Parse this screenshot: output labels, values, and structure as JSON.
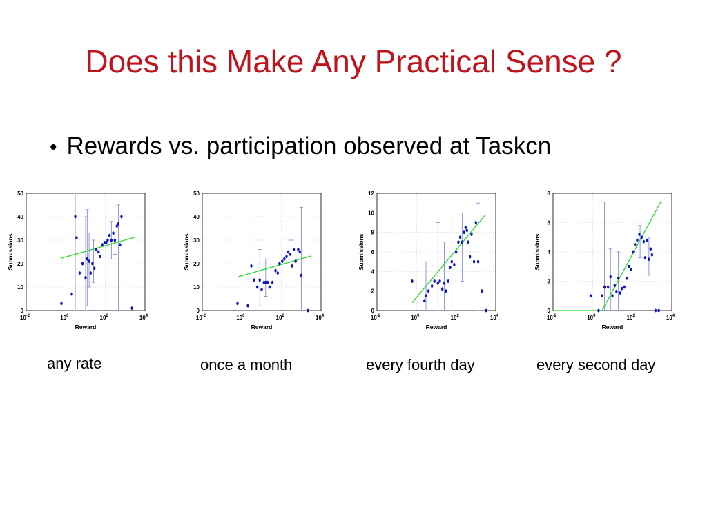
{
  "slide": {
    "title": "Does this Make Any Practical Sense ?",
    "bullet": "Rewards vs. participation observed at Taskcn"
  },
  "colors": {
    "title": "#c0141c",
    "points": "#0a14c8",
    "fit_line": "#22dd22",
    "error_bars": "#6a6ad8"
  },
  "chart_data": [
    {
      "type": "scatter",
      "caption": "any rate",
      "xlabel": "Reward",
      "ylabel": "Submissions",
      "xscale": "log",
      "xlim": [
        0.01,
        10000
      ],
      "ylim": [
        0,
        50
      ],
      "xticks": [
        "10^-2",
        "10^0",
        "10^2",
        "10^4"
      ],
      "yticks": [
        "0",
        "10",
        "20",
        "30",
        "40",
        "50"
      ],
      "grid": true,
      "points": [
        [
          0.6,
          3
        ],
        [
          2,
          7
        ],
        [
          3,
          40
        ],
        [
          3.5,
          31
        ],
        [
          5,
          16
        ],
        [
          7,
          20
        ],
        [
          10,
          14
        ],
        [
          12,
          22
        ],
        [
          15,
          21
        ],
        [
          18,
          16
        ],
        [
          22,
          20
        ],
        [
          28,
          18
        ],
        [
          35,
          26
        ],
        [
          45,
          25
        ],
        [
          55,
          23
        ],
        [
          70,
          28
        ],
        [
          90,
          29
        ],
        [
          110,
          29
        ],
        [
          130,
          30
        ],
        [
          160,
          32
        ],
        [
          200,
          30
        ],
        [
          250,
          33
        ],
        [
          300,
          30
        ],
        [
          380,
          36
        ],
        [
          450,
          37
        ],
        [
          550,
          28
        ],
        [
          650,
          40
        ],
        [
          2200,
          1
        ]
      ],
      "error_bars": [
        [
          3,
          0,
          50
        ],
        [
          10,
          0,
          40
        ],
        [
          12,
          2,
          43
        ],
        [
          15,
          10,
          33
        ],
        [
          25,
          12,
          30
        ],
        [
          200,
          22,
          38
        ],
        [
          300,
          24,
          36
        ],
        [
          450,
          0,
          45
        ]
      ],
      "fit_line": {
        "x": [
          0.6,
          3000
        ],
        "y": [
          22.3,
          31.2
        ]
      }
    },
    {
      "type": "scatter",
      "caption": "once a month",
      "xlabel": "Reward",
      "ylabel": "Submissions",
      "xscale": "log",
      "xlim": [
        0.01,
        10000
      ],
      "ylim": [
        0,
        50
      ],
      "xticks": [
        "10^-2",
        "10^0",
        "10^2",
        "10^4"
      ],
      "yticks": [
        "0",
        "10",
        "20",
        "30",
        "40",
        "50"
      ],
      "grid": true,
      "points": [
        [
          0.6,
          3
        ],
        [
          2,
          2
        ],
        [
          3,
          19
        ],
        [
          4,
          13
        ],
        [
          6,
          10
        ],
        [
          8,
          13
        ],
        [
          10,
          9
        ],
        [
          13,
          12
        ],
        [
          16,
          12
        ],
        [
          20,
          12
        ],
        [
          25,
          10
        ],
        [
          35,
          12
        ],
        [
          50,
          17
        ],
        [
          65,
          16
        ],
        [
          80,
          20
        ],
        [
          110,
          21
        ],
        [
          140,
          22
        ],
        [
          180,
          23
        ],
        [
          220,
          25
        ],
        [
          280,
          24
        ],
        [
          350,
          19
        ],
        [
          420,
          26
        ],
        [
          520,
          21
        ],
        [
          700,
          26
        ],
        [
          850,
          25
        ],
        [
          1000,
          15
        ],
        [
          2200,
          0
        ]
      ],
      "error_bars": [
        [
          8,
          2,
          26
        ],
        [
          16,
          6,
          22
        ],
        [
          300,
          16,
          30
        ],
        [
          1000,
          0,
          44
        ]
      ],
      "fit_line": {
        "x": [
          0.6,
          3000
        ],
        "y": [
          14.3,
          23.2
        ]
      }
    },
    {
      "type": "scatter",
      "caption": "every fourth day",
      "xlabel": "Reward",
      "ylabel": "Submissions",
      "xscale": "log",
      "xlim": [
        0.01,
        10000
      ],
      "ylim": [
        0,
        12
      ],
      "xticks": [
        "10^-2",
        "10^0",
        "10^2",
        "10^4"
      ],
      "yticks": [
        "0",
        "2",
        "4",
        "6",
        "8",
        "10",
        "12"
      ],
      "grid": true,
      "points": [
        [
          0.6,
          3
        ],
        [
          2.5,
          1
        ],
        [
          3,
          1.5
        ],
        [
          4,
          2
        ],
        [
          6,
          2.5
        ],
        [
          8,
          3
        ],
        [
          12,
          2.8
        ],
        [
          15,
          3
        ],
        [
          20,
          2.2
        ],
        [
          25,
          2.8
        ],
        [
          30,
          2
        ],
        [
          40,
          3
        ],
        [
          50,
          4.4
        ],
        [
          60,
          5
        ],
        [
          80,
          4.7
        ],
        [
          100,
          6
        ],
        [
          130,
          7
        ],
        [
          160,
          7.5
        ],
        [
          200,
          7
        ],
        [
          250,
          8
        ],
        [
          300,
          8.5
        ],
        [
          350,
          8.2
        ],
        [
          400,
          7
        ],
        [
          500,
          5.5
        ],
        [
          600,
          7.8
        ],
        [
          800,
          5
        ],
        [
          1000,
          9
        ],
        [
          1300,
          5
        ],
        [
          2000,
          2
        ],
        [
          3200,
          0
        ]
      ],
      "error_bars": [
        [
          3,
          0,
          5
        ],
        [
          12,
          0,
          9
        ],
        [
          25,
          0,
          7
        ],
        [
          60,
          0,
          10
        ],
        [
          200,
          3,
          10
        ],
        [
          1300,
          0,
          11
        ]
      ],
      "fit_line": {
        "x": [
          0.6,
          3000
        ],
        "y": [
          0.8,
          9.8
        ]
      }
    },
    {
      "type": "scatter",
      "caption": "every second day",
      "xlabel": "Reward",
      "ylabel": "Submissions",
      "xscale": "log",
      "xlim": [
        0.01,
        10000
      ],
      "ylim": [
        0,
        8
      ],
      "xticks": [
        "10^-2",
        "10^0",
        "10^2",
        "10^4"
      ],
      "yticks": [
        "0",
        "2",
        "4",
        "6",
        "8"
      ],
      "grid": true,
      "points": [
        [
          0.8,
          1
        ],
        [
          2,
          0
        ],
        [
          3,
          1
        ],
        [
          4,
          1.6
        ],
        [
          6,
          1.6
        ],
        [
          8,
          2.3
        ],
        [
          10,
          1
        ],
        [
          13,
          1.7
        ],
        [
          16,
          1.3
        ],
        [
          20,
          2.2
        ],
        [
          25,
          1.2
        ],
        [
          30,
          1.5
        ],
        [
          40,
          1.6
        ],
        [
          55,
          2.2
        ],
        [
          70,
          3
        ],
        [
          85,
          2.8
        ],
        [
          110,
          4
        ],
        [
          140,
          4.5
        ],
        [
          180,
          4.8
        ],
        [
          230,
          5.2
        ],
        [
          300,
          5
        ],
        [
          380,
          4.7
        ],
        [
          450,
          3.6
        ],
        [
          550,
          4.8
        ],
        [
          700,
          3.5
        ],
        [
          850,
          4.2
        ],
        [
          1000,
          3.8
        ],
        [
          1500,
          0
        ],
        [
          2200,
          0
        ]
      ],
      "error_bars": [
        [
          4,
          0,
          7.4
        ],
        [
          8,
          0,
          4.2
        ],
        [
          20,
          0,
          4
        ],
        [
          250,
          3.6,
          5.8
        ],
        [
          700,
          2.4,
          5
        ]
      ],
      "fit_line": {
        "x": [
          0.01,
          3000
        ],
        "y": [
          0,
          7.5
        ],
        "break_x": 3
      }
    }
  ]
}
